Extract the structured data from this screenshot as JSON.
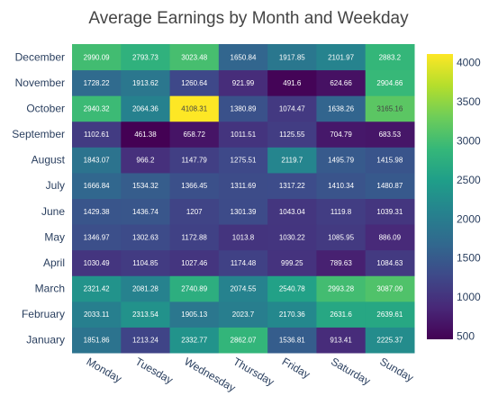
{
  "chart_data": {
    "type": "heatmap",
    "title": "Average Earnings by Month and Weekday",
    "x": [
      "Monday",
      "Tuesday",
      "Wednesday",
      "Thursday",
      "Friday",
      "Saturday",
      "Sunday"
    ],
    "y": [
      "January",
      "February",
      "March",
      "April",
      "May",
      "June",
      "July",
      "August",
      "September",
      "October",
      "November",
      "December"
    ],
    "z": [
      [
        1851.86,
        1213.24,
        2332.77,
        2862.07,
        1536.81,
        913.41,
        2225.37
      ],
      [
        2033.11,
        2313.54,
        1905.13,
        2023.7,
        2170.36,
        2631.6,
        2639.61
      ],
      [
        2321.42,
        2081.28,
        2740.89,
        2074.55,
        2540.78,
        2993.28,
        3087.09
      ],
      [
        1030.49,
        1104.85,
        1027.46,
        1174.48,
        999.25,
        789.63,
        1084.63
      ],
      [
        1346.97,
        1302.63,
        1172.88,
        1013.8,
        1030.22,
        1085.95,
        886.09
      ],
      [
        1429.38,
        1436.74,
        1207,
        1301.39,
        1043.04,
        1119.8,
        1039.31
      ],
      [
        1666.84,
        1534.32,
        1366.45,
        1311.69,
        1317.22,
        1410.34,
        1480.87
      ],
      [
        1843.07,
        966.2,
        1147.79,
        1275.51,
        2119.7,
        1495.79,
        1415.98
      ],
      [
        1102.61,
        461.38,
        658.72,
        1011.51,
        1125.55,
        704.79,
        683.53
      ],
      [
        2940.32,
        2064.36,
        4108.31,
        1380.89,
        1074.47,
        1638.26,
        3165.16
      ],
      [
        1728.22,
        1913.62,
        1260.64,
        921.99,
        491.6,
        624.66,
        2904.66
      ],
      [
        2990.09,
        2793.73,
        3023.48,
        1650.84,
        1917.85,
        2101.97,
        2883.2
      ]
    ],
    "zlabels": [
      [
        "1851.86",
        "1213.24",
        "2332.77",
        "2862.07",
        "1536.81",
        "913.41",
        "2225.37"
      ],
      [
        "2033.11",
        "2313.54",
        "1905.13",
        "2023.7",
        "2170.36",
        "2631.6",
        "2639.61"
      ],
      [
        "2321.42",
        "2081.28",
        "2740.89",
        "2074.55",
        "2540.78",
        "2993.28",
        "3087.09"
      ],
      [
        "1030.49",
        "1104.85",
        "1027.46",
        "1174.48",
        "999.25",
        "789.63",
        "1084.63"
      ],
      [
        "1346.97",
        "1302.63",
        "1172.88",
        "1013.8",
        "1030.22",
        "1085.95",
        "886.09"
      ],
      [
        "1429.38",
        "1436.74",
        "1207",
        "1301.39",
        "1043.04",
        "1119.8",
        "1039.31"
      ],
      [
        "1666.84",
        "1534.32",
        "1366.45",
        "1311.69",
        "1317.22",
        "1410.34",
        "1480.87"
      ],
      [
        "1843.07",
        "966.2",
        "1147.79",
        "1275.51",
        "2119.7",
        "1495.79",
        "1415.98"
      ],
      [
        "1102.61",
        "461.38",
        "658.72",
        "1011.51",
        "1125.55",
        "704.79",
        "683.53"
      ],
      [
        "2940.32",
        "2064.36",
        "4108.31",
        "1380.89",
        "1074.47",
        "1638.26",
        "3165.16"
      ],
      [
        "1728.22",
        "1913.62",
        "1260.64",
        "921.99",
        "491.6",
        "624.66",
        "2904.66"
      ],
      [
        "2990.09",
        "2793.73",
        "3023.48",
        "1650.84",
        "1917.85",
        "2101.97",
        "2883.2"
      ]
    ],
    "colorscale": "Viridis",
    "zrange": [
      461.38,
      4108.31
    ],
    "colorbar_ticks": [
      "500",
      "1000",
      "1500",
      "2000",
      "2500",
      "3000",
      "3500",
      "4000"
    ],
    "xlabel": "",
    "ylabel": ""
  }
}
